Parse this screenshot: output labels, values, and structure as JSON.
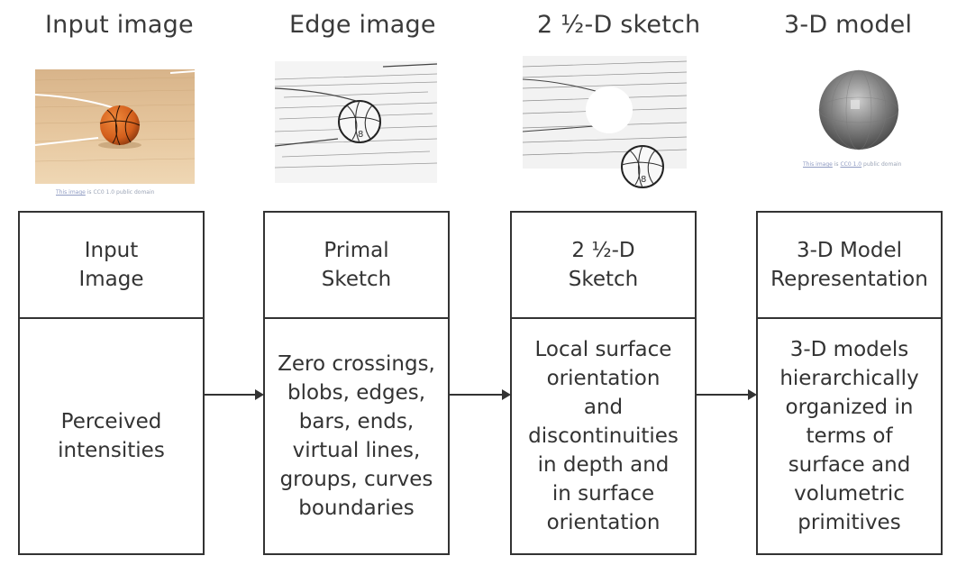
{
  "columns": [
    {
      "title": "Input image",
      "credit_link": "This image",
      "credit_rest": " is CC0 1.0 public domain"
    },
    {
      "title": "Edge image"
    },
    {
      "title": "2 ½-D sketch"
    },
    {
      "title": "3-D model",
      "credit_link": "This image",
      "credit_mid": " is ",
      "credit_link2": "CC0 1.0",
      "credit_rest": " public domain"
    }
  ],
  "stages": [
    {
      "header": "Input\nImage",
      "body": "Perceived\nintensities"
    },
    {
      "header": "Primal\nSketch",
      "body": "Zero crossings,\nblobs, edges,\nbars, ends,\nvirtual lines,\ngroups, curves\nboundaries"
    },
    {
      "header": "2 ½-D\nSketch",
      "body": "Local surface\norientation\nand\ndiscontinuities\nin depth and\nin surface\norientation"
    },
    {
      "header": "3-D Model\nRepresentation",
      "body": "3-D models\nhierarchically\norganized in\nterms of\nsurface and\nvolumetric\nprimitives"
    }
  ],
  "colors": {
    "line": "#333333",
    "ball": "#d9621f",
    "floor": "#e7c9a2",
    "sphere": "#8a8a8a"
  }
}
